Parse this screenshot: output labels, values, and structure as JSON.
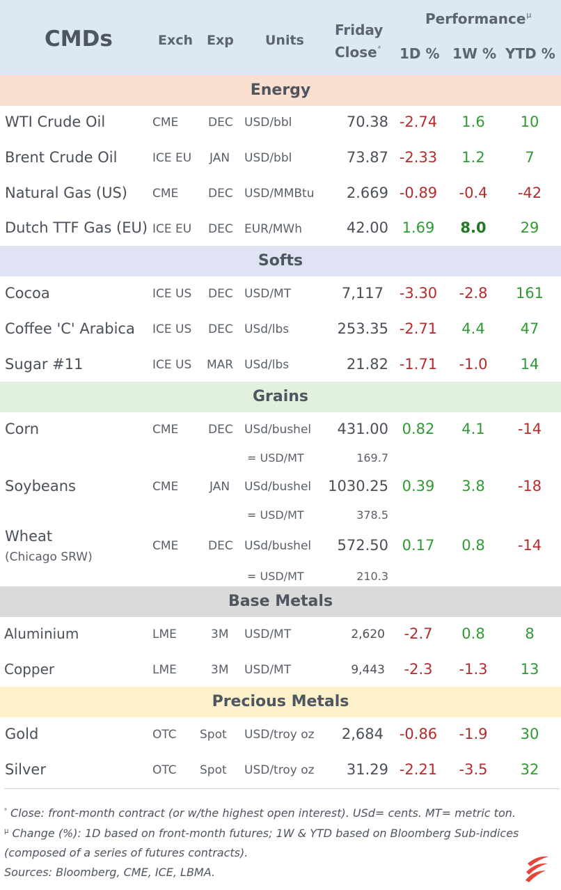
{
  "header": {
    "title": "CMDs",
    "exch": "Exch",
    "exp": "Exp",
    "units": "Units",
    "friday": "Friday",
    "close": "Close",
    "close_mark": "ᵃ",
    "performance": "Performance",
    "perf_mark": "µ",
    "d1": "1D %",
    "w1": "1W %",
    "ytd": "YTD %"
  },
  "colors": {
    "header_bg": "#dce8f4",
    "energy_bg": "#fbe0d2",
    "softs_bg": "#dfe3f3",
    "grains_bg": "#e2f1de",
    "base_bg": "#dadadb",
    "precious_bg": "#fdf1cc",
    "negative": "#b62b2b",
    "positive": "#2e9a32"
  },
  "sections": {
    "energy": "Energy",
    "softs": "Softs",
    "grains": "Grains",
    "base": "Base Metals",
    "precious": "Precious Metals"
  },
  "rows": {
    "wti": {
      "name": "WTI Crude Oil",
      "exch": "CME",
      "exp": "DEC",
      "units": "USD/bbl",
      "close": "70.38",
      "d1": "-2.74",
      "w1": "1.6",
      "ytd": "10"
    },
    "brent": {
      "name": "Brent Crude Oil",
      "exch": "ICE EU",
      "exp": "JAN",
      "units": "USD/bbl",
      "close": "73.87",
      "d1": "-2.33",
      "w1": "1.2",
      "ytd": "7"
    },
    "natgas": {
      "name": "Natural Gas (US)",
      "exch": "CME",
      "exp": "DEC",
      "units": "USD/MMBtu",
      "close": "2.669",
      "d1": "-0.89",
      "w1": "-0.4",
      "ytd": "-42"
    },
    "ttf": {
      "name": "Dutch TTF Gas (EU)",
      "exch": "ICE EU",
      "exp": "DEC",
      "units": "EUR/MWh",
      "close": "42.00",
      "d1": "1.69",
      "w1": "8.0",
      "ytd": "29"
    },
    "cocoa": {
      "name": "Cocoa",
      "exch": "ICE US",
      "exp": "DEC",
      "units": "USD/MT",
      "close": "7,117",
      "d1": "-3.30",
      "w1": "-2.8",
      "ytd": "161"
    },
    "coffee": {
      "name": "Coffee 'C' Arabica",
      "exch": "ICE US",
      "exp": "DEC",
      "units": "USd/lbs",
      "close": "253.35",
      "d1": "-2.71",
      "w1": "4.4",
      "ytd": "47"
    },
    "sugar": {
      "name": "Sugar #11",
      "exch": "ICE US",
      "exp": "MAR",
      "units": "USd/lbs",
      "close": "21.82",
      "d1": "-1.71",
      "w1": "-1.0",
      "ytd": "14"
    },
    "corn": {
      "name": "Corn",
      "exch": "CME",
      "exp": "DEC",
      "units": "USd/bushel",
      "close": "431.00",
      "d1": "0.82",
      "w1": "4.1",
      "ytd": "-14",
      "sub_units": "= USD/MT",
      "sub_close": "169.7"
    },
    "soy": {
      "name": "Soybeans",
      "exch": "CME",
      "exp": "JAN",
      "units": "USd/bushel",
      "close": "1030.25",
      "d1": "0.39",
      "w1": "3.8",
      "ytd": "-18",
      "sub_units": "= USD/MT",
      "sub_close": "378.5"
    },
    "wheat": {
      "name": "Wheat",
      "name2": "(Chicago SRW)",
      "exch": "CME",
      "exp": "DEC",
      "units": "USd/bushel",
      "close": "572.50",
      "d1": "0.17",
      "w1": "0.8",
      "ytd": "-14",
      "sub_units": "= USD/MT",
      "sub_close": "210.3"
    },
    "alu": {
      "name": "Aluminium",
      "exch": "LME",
      "exp": "3M",
      "units": "USD/MT",
      "close": "2,620",
      "d1": "-2.7",
      "w1": "0.8",
      "ytd": "8"
    },
    "copper": {
      "name": "Copper",
      "exch": "LME",
      "exp": "3M",
      "units": "USD/MT",
      "close": "9,443",
      "d1": "-2.3",
      "w1": "-1.3",
      "ytd": "13"
    },
    "gold": {
      "name": "Gold",
      "exch": "OTC",
      "exp": "Spot",
      "units": "USD/troy oz",
      "close": "2,684",
      "d1": "-0.86",
      "w1": "-1.9",
      "ytd": "30"
    },
    "silver": {
      "name": "Silver",
      "exch": "OTC",
      "exp": "Spot",
      "units": "USD/troy oz",
      "close": "31.29",
      "d1": "-2.21",
      "w1": "-3.5",
      "ytd": "32"
    }
  },
  "footnotes": {
    "a_mark": "ᵃ",
    "a": "Close: front-month contract (or w/the highest open interest). USd= cents. MT= metric ton.",
    "mu_mark": "µ",
    "mu1": "Change (%): 1D based on front-month futures; 1W & YTD based on Bloomberg Sub-indices",
    "mu2": "(composed of a series of futures contracts).",
    "sources": "Sources: Bloomberg, CME, ICE, LBMA."
  },
  "logo": "brand-logo-icon"
}
